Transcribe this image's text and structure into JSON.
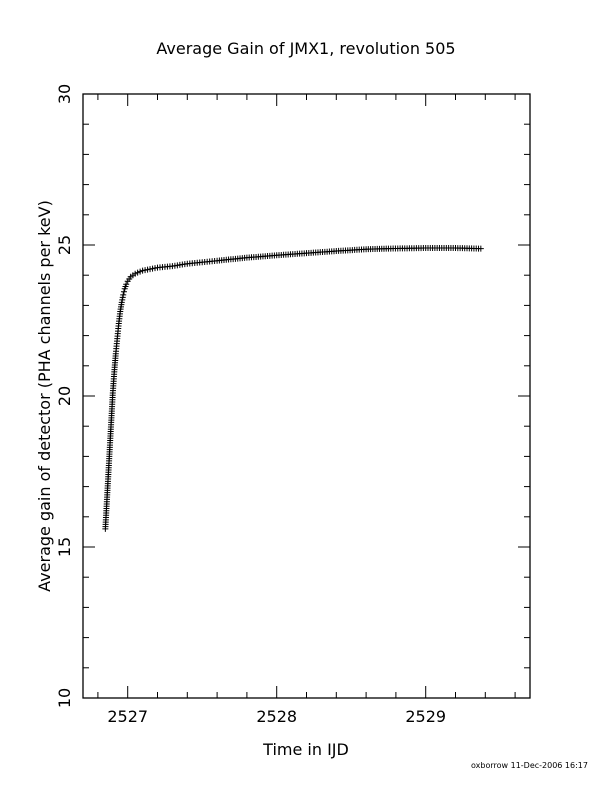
{
  "chart_data": {
    "type": "scatter",
    "title": "Average Gain of JMX1, revolution 505",
    "xlabel": "Time in IJD",
    "ylabel": "Average gain of detector (PHA channels per keV)",
    "xlim": [
      2526.7,
      2529.7
    ],
    "ylim": [
      10,
      30
    ],
    "xticks": [
      2527,
      2528,
      2529
    ],
    "xtick_labels": [
      "2527",
      "2528",
      "2529"
    ],
    "yticks": [
      10,
      15,
      20,
      25,
      30
    ],
    "ytick_labels": [
      "10",
      "15",
      "20",
      "25",
      "30"
    ],
    "marker": "+",
    "grid": false,
    "legend": "none",
    "series": [
      {
        "x": [
          2526.85,
          2526.86,
          2526.87,
          2526.88,
          2526.89,
          2526.9,
          2526.91,
          2526.92,
          2526.93,
          2526.94,
          2526.95,
          2526.96,
          2526.97,
          2526.98,
          2526.99,
          2527.0,
          2527.02,
          2527.05,
          2527.1,
          2527.15,
          2527.2,
          2527.3,
          2527.4,
          2527.5,
          2527.6,
          2527.8,
          2528.0,
          2528.2,
          2528.4,
          2528.6,
          2528.75,
          2529.0,
          2529.2,
          2529.37
        ],
        "y": [
          15.6,
          16.5,
          17.4,
          18.3,
          19.2,
          20.1,
          20.8,
          21.4,
          21.9,
          22.4,
          22.8,
          23.1,
          23.35,
          23.55,
          23.7,
          23.8,
          23.95,
          24.05,
          24.15,
          24.2,
          24.25,
          24.3,
          24.38,
          24.43,
          24.48,
          24.58,
          24.66,
          24.73,
          24.8,
          24.86,
          24.88,
          24.9,
          24.9,
          24.88
        ]
      }
    ]
  },
  "footer": "oxborrow 11-Dec-2006 16:17"
}
